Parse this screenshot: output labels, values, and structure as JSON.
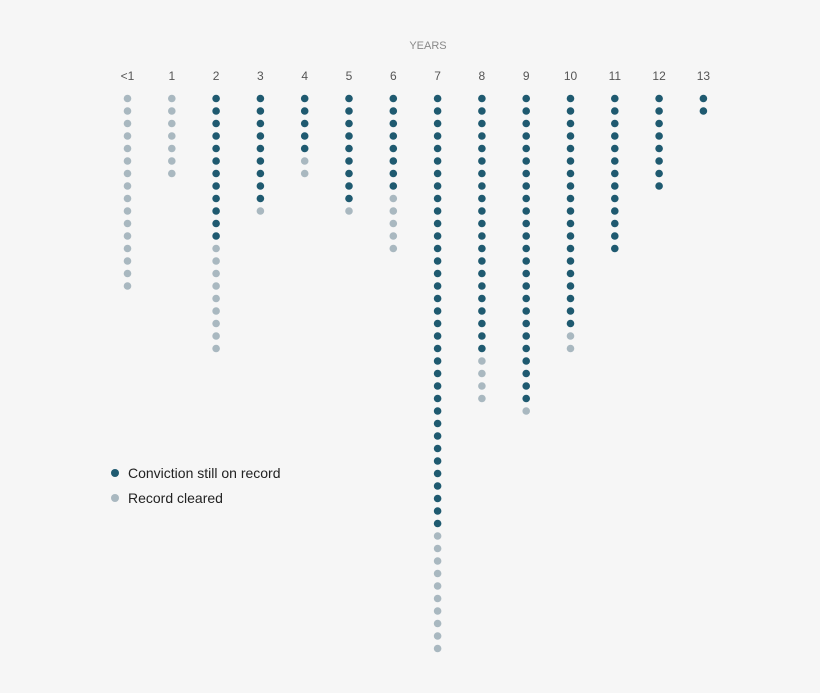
{
  "chart_data": {
    "type": "scatter",
    "title": "",
    "xlabel": "YEARS",
    "ylabel": "",
    "categories": [
      "<1",
      "1",
      "2",
      "3",
      "4",
      "5",
      "6",
      "7",
      "8",
      "9",
      "10",
      "11",
      "12",
      "13"
    ],
    "series": [
      {
        "name": "Conviction still on record",
        "color": "#1f5a70",
        "values": [
          0,
          0,
          12,
          9,
          5,
          9,
          8,
          35,
          21,
          25,
          19,
          13,
          8,
          2
        ]
      },
      {
        "name": "Record cleared",
        "color": "#a9b8c0",
        "values": [
          16,
          7,
          9,
          1,
          2,
          1,
          5,
          10,
          4,
          1,
          2,
          0,
          0,
          0
        ]
      }
    ],
    "legend_position": "bottom-left",
    "grid": false
  }
}
